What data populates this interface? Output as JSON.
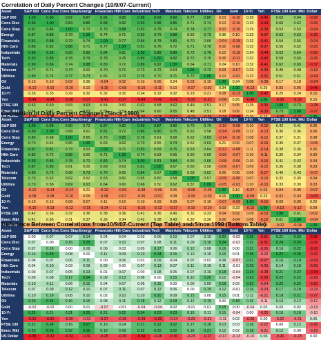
{
  "assets": [
    "S&P 500",
    "Cons Disc",
    "Cons Stap",
    "Energy",
    "Financials",
    "Hlth Care",
    "Industrials",
    "Tech",
    "Materials",
    "Telecom",
    "Utilities",
    "Oil",
    "Gold",
    "10-Yr",
    "Yen",
    "FTSE 100",
    "Emr. Mkt",
    "Dollar"
  ],
  "row_labels": [
    "S&P 500",
    "Cons Disc",
    "Cons Stap",
    "Energy",
    "Financials",
    "Hlth Care",
    "Industrials",
    "Tech",
    "Materials",
    "Telecom",
    "Utilities",
    "Oil",
    "Gold",
    "10-Yr",
    "Yen",
    "FTSE 100",
    "Emer. Mkt",
    "US Dollar"
  ],
  "corner_label": "Asset",
  "colors": {
    "header": "#1f3864",
    "neg": "#e8202a",
    "mid": "#ffeb84",
    "pos": "#2eaa4a",
    "diff_neg": "#e8202a",
    "diff_zero": "#ffffff",
    "diff_pos": "#2eaa4a"
  },
  "chart_data": [
    {
      "type": "heatmap",
      "title": "Correlation of Daily Percent Changes (10/9/07-Current)",
      "values": [
        [
          1.0,
          0.96,
          0.87,
          0.87,
          0.91,
          0.86,
          0.96,
          0.93,
          0.9,
          0.77,
          0.8,
          0.1,
          -0.1,
          0.35,
          -0.46,
          0.63,
          0.64,
          -0.29
        ],
        [
          0.96,
          1.0,
          0.84,
          0.86,
          0.88,
          0.82,
          0.93,
          0.88,
          0.86,
          0.71,
          0.74,
          0.1,
          -0.1,
          0.33,
          -0.44,
          0.6,
          0.62,
          -0.26
        ],
        [
          0.87,
          0.84,
          1.0,
          0.73,
          0.79,
          0.88,
          0.83,
          0.78,
          0.74,
          0.74,
          0.77,
          0.02,
          -0.1,
          0.29,
          -0.38,
          0.53,
          0.53,
          -0.24
        ],
        [
          0.87,
          0.86,
          0.73,
          1.0,
          0.74,
          0.71,
          0.83,
          0.79,
          0.88,
          0.62,
          0.73,
          0.36,
          0.1,
          0.32,
          -0.37,
          0.63,
          0.63,
          -0.35
        ],
        [
          0.91,
          0.88,
          0.79,
          0.74,
          1.0,
          0.77,
          0.84,
          0.78,
          0.8,
          0.7,
          0.66,
          -0.04,
          -0.15,
          0.32,
          -0.41,
          0.54,
          0.55,
          -0.24
        ],
        [
          0.86,
          0.82,
          0.88,
          0.71,
          0.77,
          1.0,
          0.81,
          0.76,
          0.72,
          0.71,
          0.7,
          0.02,
          -0.08,
          0.32,
          -0.37,
          0.5,
          0.52,
          -0.23
        ],
        [
          0.96,
          0.93,
          0.83,
          0.83,
          0.84,
          0.81,
          1.0,
          0.89,
          0.89,
          0.72,
          0.76,
          0.1,
          -0.1,
          0.34,
          -0.44,
          0.62,
          0.64,
          -0.3
        ],
        [
          0.93,
          0.88,
          0.78,
          0.79,
          0.78,
          0.76,
          0.89,
          1.0,
          0.82,
          0.72,
          0.7,
          0.06,
          -0.11,
          0.32,
          -0.42,
          0.58,
          0.6,
          -0.25
        ],
        [
          0.9,
          0.86,
          0.74,
          0.88,
          0.8,
          0.72,
          0.89,
          0.82,
          1.0,
          0.64,
          0.71,
          0.24,
          0.1,
          0.32,
          -0.41,
          0.62,
          0.65,
          -0.37
        ],
        [
          0.77,
          0.71,
          0.74,
          0.62,
          0.7,
          0.71,
          0.72,
          0.72,
          0.64,
          1.0,
          0.72,
          0.03,
          -0.07,
          0.23,
          -0.33,
          0.49,
          0.48,
          -0.19
        ],
        [
          0.8,
          0.74,
          0.77,
          0.73,
          0.66,
          0.7,
          0.76,
          0.7,
          0.71,
          0.72,
          1.0,
          0.1,
          -0.02,
          0.21,
          -0.31,
          0.51,
          0.51,
          -0.24
        ],
        [
          0.1,
          0.1,
          0.02,
          0.36,
          -0.04,
          0.02,
          0.1,
          0.06,
          0.24,
          0.03,
          0.1,
          1.0,
          0.34,
          0.08,
          -0.08,
          0.17,
          0.18,
          -0.24
        ],
        [
          -0.1,
          -0.1,
          -0.1,
          0.1,
          -0.15,
          -0.08,
          -0.1,
          -0.11,
          0.1,
          -0.07,
          -0.02,
          0.34,
          1.0,
          -0.13,
          0.25,
          0.05,
          0.06,
          -0.46
        ],
        [
          0.35,
          0.33,
          0.29,
          0.32,
          0.32,
          0.32,
          0.34,
          0.32,
          0.32,
          0.23,
          0.21,
          0.08,
          -0.13,
          1.0,
          -0.4,
          0.25,
          0.24,
          0.1
        ],
        [
          -0.46,
          -0.44,
          -0.38,
          -0.37,
          -0.41,
          -0.37,
          -0.44,
          -0.42,
          -0.41,
          -0.33,
          -0.31,
          -0.08,
          0.25,
          -0.4,
          1.0,
          -0.35,
          -0.33,
          0.15
        ],
        [
          0.63,
          0.6,
          0.53,
          0.63,
          0.54,
          0.5,
          0.62,
          0.58,
          0.62,
          0.49,
          0.51,
          0.17,
          0.05,
          0.25,
          -0.35,
          1.0,
          0.73,
          -0.28
        ],
        [
          0.64,
          0.62,
          0.53,
          0.63,
          0.55,
          0.52,
          0.64,
          0.6,
          0.65,
          0.48,
          0.51,
          0.18,
          0.06,
          0.24,
          -0.33,
          0.73,
          1.0,
          -0.27
        ],
        [
          -0.29,
          -0.26,
          -0.24,
          -0.35,
          -0.24,
          -0.23,
          -0.3,
          -0.25,
          -0.37,
          -0.19,
          -0.24,
          -0.24,
          -0.46,
          0.1,
          0.15,
          -0.28,
          -0.27,
          1.0
        ]
      ]
    },
    {
      "type": "heatmap",
      "title": "Correlation of Daily Percent Changes (Since 1990)",
      "values": [
        [
          1.0,
          0.89,
          0.8,
          0.73,
          0.87,
          0.82,
          0.93,
          0.87,
          0.8,
          0.7,
          0.7,
          -0.1,
          -0.08,
          0.1,
          -0.15,
          0.42,
          0.41,
          0.06
        ],
        [
          0.89,
          1.0,
          0.68,
          0.61,
          0.81,
          0.72,
          0.86,
          0.8,
          0.75,
          0.62,
          0.58,
          -0.14,
          -0.08,
          0.12,
          -0.13,
          0.36,
          0.36,
          0.06
        ],
        [
          0.8,
          0.68,
          1.0,
          0.65,
          0.73,
          0.85,
          0.78,
          0.61,
          0.68,
          0.62,
          0.69,
          -0.14,
          -0.1,
          0.08,
          -0.12,
          0.37,
          0.31,
          0.08
        ],
        [
          0.73,
          0.61,
          0.65,
          1.0,
          0.63,
          0.62,
          0.7,
          0.55,
          0.73,
          0.52,
          0.63,
          0.21,
          0.09,
          0.07,
          -0.15,
          0.36,
          0.37,
          -0.05
        ],
        [
          0.87,
          0.81,
          0.73,
          0.63,
          1.0,
          0.71,
          0.83,
          0.69,
          0.76,
          0.63,
          0.64,
          -0.12,
          -0.08,
          0.11,
          -0.14,
          0.38,
          0.36,
          0.05
        ],
        [
          0.82,
          0.72,
          0.85,
          0.62,
          0.71,
          1.0,
          0.74,
          0.63,
          0.65,
          0.6,
          0.6,
          -0.09,
          -0.07,
          0.1,
          -0.11,
          0.36,
          0.34,
          0.06
        ],
        [
          0.93,
          0.86,
          0.78,
          0.7,
          0.83,
          0.74,
          1.0,
          0.81,
          0.84,
          0.65,
          0.66,
          -0.08,
          -0.06,
          0.1,
          -0.16,
          0.41,
          0.42,
          0.04
        ],
        [
          0.87,
          0.8,
          0.61,
          0.55,
          0.69,
          0.63,
          0.81,
          1.0,
          0.67,
          0.6,
          0.5,
          -0.06,
          -0.07,
          0.09,
          -0.12,
          0.36,
          0.38,
          0.03
        ],
        [
          0.8,
          0.75,
          0.68,
          0.73,
          0.76,
          0.65,
          0.84,
          0.67,
          1.0,
          0.58,
          0.62,
          0.06,
          0.08,
          0.09,
          -0.17,
          0.4,
          0.43,
          -0.07
        ],
        [
          0.7,
          0.62,
          0.62,
          0.52,
          0.63,
          0.6,
          0.65,
          0.6,
          0.58,
          1.0,
          0.57,
          -0.09,
          -0.06,
          0.07,
          -0.1,
          0.32,
          0.3,
          0.04
        ],
        [
          0.7,
          0.58,
          0.69,
          0.63,
          0.64,
          0.6,
          0.66,
          0.5,
          0.62,
          0.57,
          1.0,
          -0.05,
          -0.03,
          0.1,
          -0.1,
          0.33,
          0.3,
          0.03
        ],
        [
          -0.1,
          -0.14,
          -0.14,
          0.21,
          -0.12,
          -0.09,
          -0.08,
          -0.06,
          0.06,
          -0.09,
          -0.05,
          1.0,
          0.16,
          -0.07,
          0.03,
          0.04,
          0.06,
          -0.07
        ],
        [
          -0.08,
          -0.08,
          -0.1,
          0.09,
          -0.08,
          -0.07,
          -0.06,
          -0.07,
          0.08,
          -0.06,
          -0.03,
          0.16,
          1.0,
          -0.09,
          0.23,
          0.02,
          0.04,
          -0.33
        ],
        [
          0.1,
          0.12,
          0.08,
          0.07,
          0.11,
          0.1,
          0.1,
          0.09,
          0.09,
          0.07,
          0.1,
          -0.07,
          -0.09,
          1.0,
          -0.15,
          0.09,
          0.06,
          0.2
        ],
        [
          -0.15,
          -0.13,
          -0.12,
          -0.15,
          -0.14,
          -0.11,
          -0.16,
          -0.12,
          -0.17,
          -0.1,
          -0.1,
          0.03,
          0.23,
          -0.15,
          1.0,
          -0.13,
          -0.12,
          0.09
        ],
        [
          0.42,
          0.36,
          0.37,
          0.36,
          0.38,
          0.36,
          0.41,
          0.36,
          0.4,
          0.32,
          0.33,
          0.04,
          0.02,
          0.09,
          -0.13,
          1.0,
          0.61,
          -0.02
        ],
        [
          0.41,
          0.36,
          0.31,
          0.37,
          0.36,
          0.34,
          0.42,
          0.38,
          0.43,
          0.3,
          0.3,
          0.06,
          0.04,
          0.06,
          -0.12,
          0.61,
          1.0,
          -0.04
        ],
        [
          0.06,
          0.06,
          0.08,
          -0.05,
          0.05,
          0.06,
          0.04,
          0.03,
          -0.07,
          0.04,
          0.03,
          -0.07,
          -0.33,
          0.2,
          0.09,
          -0.02,
          -0.04,
          1.0
        ]
      ]
    },
    {
      "type": "heatmap",
      "title": "Difference Between Correlations from 10/9/07-Current (Top Table) and Since 1990 (Bottom Table)",
      "values": [
        [
          0.0,
          0.07,
          0.07,
          0.14,
          0.04,
          0.04,
          0.03,
          0.06,
          0.1,
          0.07,
          0.1,
          0.2,
          -0.02,
          0.25,
          -0.31,
          0.21,
          0.23,
          -0.35
        ],
        [
          0.07,
          0.0,
          0.16,
          0.25,
          0.07,
          0.1,
          0.07,
          0.08,
          0.11,
          0.09,
          0.16,
          0.24,
          -0.02,
          0.21,
          -0.31,
          0.24,
          0.26,
          -0.32
        ],
        [
          0.07,
          0.16,
          0.0,
          0.08,
          0.06,
          0.03,
          0.05,
          0.17,
          0.06,
          0.12,
          0.08,
          0.16,
          0.0,
          0.21,
          -0.26,
          0.16,
          0.22,
          -0.32
        ],
        [
          0.14,
          0.25,
          0.08,
          0.0,
          0.11,
          0.09,
          0.13,
          0.24,
          0.15,
          0.1,
          0.1,
          0.15,
          0.01,
          0.25,
          -0.22,
          0.27,
          0.26,
          -0.3
        ],
        [
          0.04,
          0.07,
          0.06,
          0.11,
          0.0,
          0.06,
          0.01,
          0.09,
          0.04,
          0.07,
          0.02,
          0.08,
          -0.07,
          0.21,
          -0.27,
          0.16,
          0.19,
          -0.29
        ],
        [
          0.04,
          0.1,
          0.03,
          0.09,
          0.06,
          0.0,
          0.07,
          0.13,
          0.07,
          0.11,
          0.1,
          0.11,
          -0.01,
          0.22,
          -0.26,
          0.14,
          0.18,
          -0.29
        ],
        [
          0.03,
          0.07,
          0.05,
          0.13,
          0.01,
          0.07,
          0.0,
          0.08,
          0.05,
          0.07,
          0.1,
          0.18,
          -0.04,
          0.24,
          -0.28,
          0.21,
          0.22,
          -0.34
        ],
        [
          0.06,
          0.08,
          0.17,
          0.24,
          0.09,
          0.13,
          0.08,
          0.0,
          0.15,
          0.12,
          0.2,
          0.12,
          -0.04,
          0.23,
          -0.3,
          0.22,
          0.22,
          -0.28
        ],
        [
          0.1,
          0.11,
          0.06,
          0.15,
          0.04,
          0.07,
          0.05,
          0.15,
          0.0,
          0.06,
          0.09,
          0.18,
          0.02,
          0.23,
          -0.24,
          0.22,
          0.22,
          -0.3
        ],
        [
          0.07,
          0.09,
          0.12,
          0.1,
          0.07,
          0.11,
          0.07,
          0.12,
          0.06,
          0.0,
          0.15,
          0.12,
          -0.01,
          0.16,
          -0.23,
          0.17,
          0.18,
          -0.23
        ],
        [
          0.1,
          0.16,
          0.08,
          0.1,
          0.02,
          0.1,
          0.1,
          0.2,
          0.09,
          0.15,
          0.0,
          0.15,
          0.01,
          0.11,
          -0.21,
          0.18,
          0.21,
          -0.27
        ],
        [
          0.2,
          0.24,
          0.16,
          0.15,
          0.08,
          0.11,
          0.18,
          0.12,
          0.18,
          0.12,
          0.15,
          0.0,
          0.18,
          0.15,
          -0.11,
          0.13,
          0.12,
          -0.17
        ],
        [
          -0.02,
          -0.02,
          0.0,
          0.01,
          -0.07,
          -0.01,
          -0.04,
          -0.04,
          0.02,
          -0.01,
          0.01,
          0.18,
          0.0,
          -0.04,
          0.02,
          0.03,
          0.02,
          -0.13
        ],
        [
          0.25,
          0.21,
          0.21,
          0.25,
          0.21,
          0.22,
          0.24,
          0.23,
          0.23,
          0.16,
          0.11,
          0.15,
          -0.04,
          0.0,
          -0.25,
          0.16,
          0.18,
          -0.1
        ],
        [
          -0.31,
          -0.31,
          -0.26,
          -0.22,
          -0.27,
          -0.26,
          -0.28,
          -0.3,
          -0.24,
          -0.23,
          -0.21,
          -0.11,
          0.02,
          -0.25,
          0.0,
          -0.22,
          -0.21,
          0.06
        ],
        [
          0.21,
          0.24,
          0.16,
          0.27,
          0.16,
          0.14,
          0.21,
          0.22,
          0.22,
          0.17,
          0.18,
          0.13,
          0.03,
          0.16,
          -0.22,
          0.0,
          0.12,
          -0.26
        ],
        [
          0.23,
          0.26,
          0.22,
          0.26,
          0.19,
          0.18,
          0.22,
          0.22,
          0.22,
          0.18,
          0.21,
          0.12,
          0.02,
          0.18,
          -0.21,
          0.12,
          0.0,
          -0.23
        ],
        [
          -0.35,
          -0.32,
          -0.32,
          -0.3,
          -0.29,
          -0.29,
          -0.34,
          -0.28,
          -0.3,
          -0.23,
          -0.27,
          -0.17,
          -0.13,
          -0.1,
          0.06,
          -0.26,
          -0.23,
          0.0
        ]
      ]
    }
  ]
}
